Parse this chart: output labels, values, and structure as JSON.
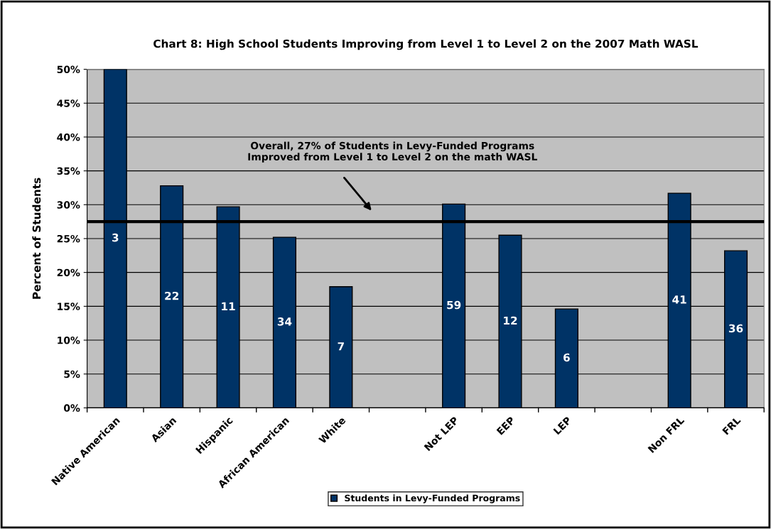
{
  "chart_data": {
    "type": "bar",
    "title": "Chart 8: High School Students Improving from Level 1 to Level 2 on the 2007 Math WASL",
    "ylabel": "Percent of Students",
    "categories": [
      "Native American",
      "Asian",
      "Hispanic",
      "African American",
      "White",
      null,
      "Not LEP",
      "EEP",
      "LEP",
      null,
      "Non FRL",
      "FRL"
    ],
    "series": [
      {
        "name": "Students in Levy-Funded Programs",
        "color": "#003366",
        "values": [
          50,
          32.8,
          29.7,
          25.2,
          17.9,
          null,
          30.1,
          25.5,
          14.6,
          null,
          31.7,
          23.2
        ]
      }
    ],
    "ylim": [
      0,
      50
    ],
    "yticks": [
      {
        "value": 0,
        "label": "0%"
      },
      {
        "value": 5,
        "label": "5%"
      },
      {
        "value": 10,
        "label": "10%"
      },
      {
        "value": 15,
        "label": "15%"
      },
      {
        "value": 20,
        "label": "20%"
      },
      {
        "value": 25,
        "label": "25%"
      },
      {
        "value": 30,
        "label": "30%"
      },
      {
        "value": 35,
        "label": "35%"
      },
      {
        "value": 40,
        "label": "40%"
      },
      {
        "value": 45,
        "label": "45%"
      },
      {
        "value": 50,
        "label": "50%"
      }
    ],
    "ref_lines": [
      {
        "axis": "y",
        "value": 27.5,
        "color": "#000000"
      }
    ],
    "annotations": [
      "Overall, 27% of Students in Levy-Funded Programs\nImproved from Level 1 to Level 2 on the math WASL",
      "3",
      "22",
      "11",
      "34",
      "7",
      "59",
      "12",
      "6",
      "41",
      "36"
    ],
    "grid": "y",
    "legend": "bottom"
  }
}
